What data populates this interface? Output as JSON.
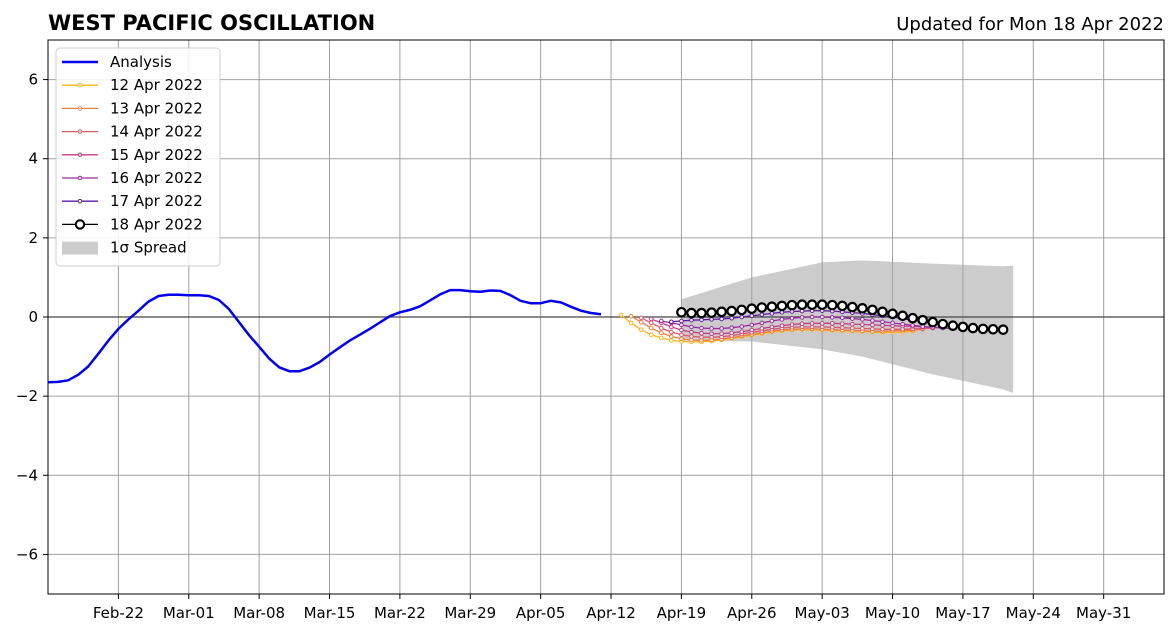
{
  "chart_data": {
    "type": "line",
    "title": "WEST PACIFIC OSCILLATION",
    "subtitle": "Updated for Mon 18 Apr 2022",
    "xlabel": "",
    "ylabel": "",
    "ylim": [
      -7,
      7
    ],
    "xlim": [
      "2022-02-15",
      "2022-06-06"
    ],
    "yticks": [
      -6,
      -4,
      -2,
      0,
      2,
      4,
      6
    ],
    "ytick_labels": [
      "−6",
      "−4",
      "−2",
      "0",
      "2",
      "4",
      "6"
    ],
    "xticks": [
      "2022-02-22",
      "2022-03-01",
      "2022-03-08",
      "2022-03-15",
      "2022-03-22",
      "2022-03-29",
      "2022-04-05",
      "2022-04-12",
      "2022-04-19",
      "2022-04-26",
      "2022-05-03",
      "2022-05-10",
      "2022-05-17",
      "2022-05-24",
      "2022-05-31"
    ],
    "xtick_labels": [
      "Feb-22",
      "Mar-01",
      "Mar-08",
      "Mar-15",
      "Mar-22",
      "Mar-29",
      "Apr-05",
      "Apr-12",
      "Apr-19",
      "Apr-26",
      "May-03",
      "May-10",
      "May-17",
      "May-24",
      "May-31"
    ],
    "grid": true,
    "legend_position": "top-left",
    "analysis": {
      "name": "Analysis",
      "color": "#0000ee",
      "start_date": "2022-02-15",
      "values": [
        -1.65,
        -1.64,
        -1.6,
        -1.46,
        -1.25,
        -0.93,
        -0.6,
        -0.3,
        -0.06,
        0.16,
        0.39,
        0.53,
        0.56,
        0.56,
        0.55,
        0.55,
        0.53,
        0.43,
        0.2,
        -0.13,
        -0.46,
        -0.75,
        -1.05,
        -1.27,
        -1.37,
        -1.37,
        -1.28,
        -1.14,
        -0.95,
        -0.77,
        -0.6,
        -0.45,
        -0.3,
        -0.14,
        0.02,
        0.12,
        0.18,
        0.27,
        0.42,
        0.57,
        0.68,
        0.68,
        0.65,
        0.64,
        0.67,
        0.66,
        0.55,
        0.41,
        0.35,
        0.35,
        0.41,
        0.37,
        0.26,
        0.16,
        0.1,
        0.07
      ]
    },
    "forecasts": [
      {
        "name": "12 Apr 2022",
        "color": "#fbb41a",
        "start_date": "2022-04-13",
        "values": [
          0.05,
          -0.15,
          -0.32,
          -0.45,
          -0.53,
          -0.59,
          -0.62,
          -0.63,
          -0.63,
          -0.61,
          -0.58,
          -0.54,
          -0.5,
          -0.46,
          -0.42,
          -0.38,
          -0.35,
          -0.33,
          -0.32,
          -0.32,
          -0.33,
          -0.34,
          -0.35,
          -0.36,
          -0.37,
          -0.38,
          -0.39,
          -0.39,
          -0.38,
          -0.36
        ]
      },
      {
        "name": "13 Apr 2022",
        "color": "#f07e3a",
        "start_date": "2022-04-14",
        "values": [
          0.02,
          -0.13,
          -0.28,
          -0.4,
          -0.49,
          -0.55,
          -0.58,
          -0.59,
          -0.58,
          -0.56,
          -0.52,
          -0.48,
          -0.44,
          -0.4,
          -0.36,
          -0.33,
          -0.31,
          -0.3,
          -0.3,
          -0.31,
          -0.32,
          -0.33,
          -0.34,
          -0.35,
          -0.36,
          -0.36,
          -0.35,
          -0.34,
          -0.33,
          -0.31
        ]
      },
      {
        "name": "14 Apr 2022",
        "color": "#e05567",
        "start_date": "2022-04-15",
        "values": [
          -0.02,
          -0.15,
          -0.28,
          -0.38,
          -0.45,
          -0.49,
          -0.51,
          -0.51,
          -0.5,
          -0.47,
          -0.43,
          -0.39,
          -0.35,
          -0.31,
          -0.28,
          -0.26,
          -0.25,
          -0.25,
          -0.25,
          -0.26,
          -0.27,
          -0.28,
          -0.29,
          -0.3,
          -0.31,
          -0.31,
          -0.31,
          -0.3,
          -0.29,
          -0.28
        ]
      },
      {
        "name": "15 Apr 2022",
        "color": "#c33e84",
        "start_date": "2022-04-16",
        "values": [
          -0.05,
          -0.15,
          -0.25,
          -0.33,
          -0.38,
          -0.41,
          -0.42,
          -0.42,
          -0.4,
          -0.37,
          -0.33,
          -0.29,
          -0.25,
          -0.22,
          -0.19,
          -0.17,
          -0.16,
          -0.16,
          -0.16,
          -0.17,
          -0.18,
          -0.19,
          -0.2,
          -0.21,
          -0.22,
          -0.23,
          -0.24,
          -0.25,
          -0.26,
          -0.27
        ]
      },
      {
        "name": "16 Apr 2022",
        "color": "#9c27a6",
        "start_date": "2022-04-17",
        "values": [
          -0.1,
          -0.15,
          -0.2,
          -0.25,
          -0.28,
          -0.29,
          -0.29,
          -0.27,
          -0.24,
          -0.2,
          -0.15,
          -0.1,
          -0.06,
          -0.03,
          -0.01,
          0.0,
          0.0,
          -0.01,
          -0.02,
          -0.04,
          -0.06,
          -0.09,
          -0.12,
          -0.15,
          -0.18,
          -0.21,
          -0.24,
          -0.26,
          -0.28,
          -0.29
        ]
      },
      {
        "name": "17 Apr 2022",
        "color": "#5e1aa8",
        "start_date": "2022-04-18",
        "values": [
          -0.12,
          -0.1,
          -0.08,
          -0.07,
          -0.06,
          -0.05,
          -0.03,
          0.0,
          0.03,
          0.06,
          0.09,
          0.12,
          0.14,
          0.15,
          0.16,
          0.16,
          0.15,
          0.13,
          0.11,
          0.09,
          0.06,
          0.03,
          0.0,
          -0.04,
          -0.08,
          -0.12,
          -0.16,
          -0.2,
          -0.23,
          -0.26
        ]
      }
    ],
    "latest": {
      "name": "18 Apr 2022",
      "color": "#000000",
      "start_date": "2022-04-19",
      "values": [
        0.12,
        0.1,
        0.1,
        0.11,
        0.13,
        0.15,
        0.18,
        0.21,
        0.24,
        0.26,
        0.28,
        0.3,
        0.31,
        0.31,
        0.31,
        0.3,
        0.28,
        0.25,
        0.22,
        0.18,
        0.13,
        0.08,
        0.03,
        -0.03,
        -0.08,
        -0.13,
        -0.18,
        -0.22,
        -0.25,
        -0.28,
        -0.3,
        -0.31,
        -0.32
      ]
    },
    "spread": {
      "name": "1σ Spread",
      "color": "#cccccc",
      "dates": [
        "2022-04-19",
        "2022-04-26",
        "2022-05-03",
        "2022-05-07",
        "2022-05-14",
        "2022-05-21",
        "2022-05-22"
      ],
      "upper": [
        0.45,
        1.0,
        1.38,
        1.43,
        1.35,
        1.28,
        1.3
      ],
      "lower": [
        -0.6,
        -0.62,
        -0.82,
        -1.0,
        -1.45,
        -1.83,
        -1.92
      ]
    },
    "legend": [
      "Analysis",
      "12 Apr 2022",
      "13 Apr 2022",
      "14 Apr 2022",
      "15 Apr 2022",
      "16 Apr 2022",
      "17 Apr 2022",
      "18 Apr 2022",
      "1σ Spread"
    ]
  }
}
